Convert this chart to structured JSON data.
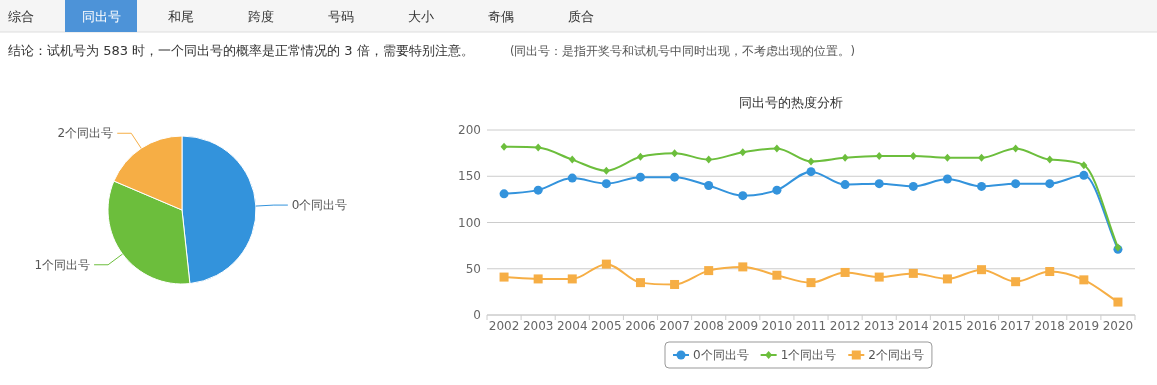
{
  "chart_data": [
    {
      "type": "pie",
      "categories": [
        "0个同出号",
        "1个同出号",
        "2个同出号"
      ],
      "values": [
        48.3,
        33.1,
        18.6
      ],
      "colors": [
        "#3393dc",
        "#6cbe3c",
        "#f6ae45"
      ],
      "annotations": [
        "综合",
        "同出号",
        "和尾",
        "跨度",
        "号码",
        "大小",
        "奇偶",
        "质合",
        "结论：试机号为 583 时，一个同出号的概率是正常情况的 3 倍，需要特别注意。",
        "(同出号：是指开奖号和试机号中同时出现，不考虑出现的位置。)"
      ]
    },
    {
      "type": "line",
      "title": "同出号的热度分析",
      "categories": [
        "2002",
        "2003",
        "2004",
        "2005",
        "2006",
        "2007",
        "2008",
        "2009",
        "2010",
        "2011",
        "2012",
        "2013",
        "2014",
        "2015",
        "2016",
        "2017",
        "2018",
        "2019",
        "2020"
      ],
      "series": [
        {
          "name": "0个同出号",
          "color": "#3393dc",
          "marker": "circle",
          "values": [
            131,
            135,
            148,
            142,
            149,
            149,
            140,
            129,
            135,
            155,
            141,
            142,
            139,
            147,
            139,
            142,
            142,
            151,
            71
          ]
        },
        {
          "name": "1个同出号",
          "color": "#6cbe3c",
          "marker": "diamond",
          "values": [
            182,
            181,
            168,
            156,
            171,
            175,
            168,
            176,
            180,
            166,
            170,
            172,
            172,
            170,
            170,
            180,
            168,
            162,
            73
          ]
        },
        {
          "name": "2个同出号",
          "color": "#f6ae45",
          "marker": "square",
          "values": [
            41,
            39,
            39,
            55,
            35,
            33,
            48,
            52,
            43,
            35,
            46,
            41,
            45,
            39,
            49,
            36,
            47,
            38,
            14
          ]
        }
      ],
      "ylim": [
        0,
        200
      ],
      "yticks": [
        0,
        50,
        100,
        150,
        200
      ],
      "grid": "y",
      "legend": "bottom"
    }
  ]
}
